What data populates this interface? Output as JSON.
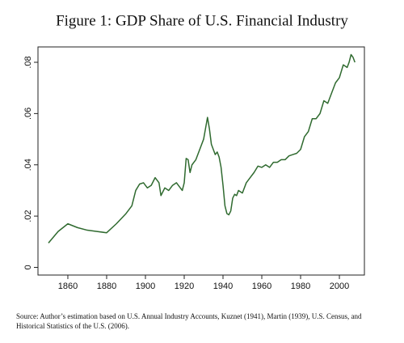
{
  "chart_data": {
    "type": "line",
    "title": "Figure 1: GDP Share of U.S. Financial Industry",
    "source": "Source: Author’s estimation based on U.S. Annual Industry Accounts, Kuznet (1941), Martin (1939), U.S. Census, and Historical Statistics of the U.S. (2006).",
    "color": "#2f6a2f",
    "x": [
      1850,
      1855,
      1860,
      1865,
      1870,
      1875,
      1880,
      1885,
      1890,
      1893,
      1895,
      1897,
      1899,
      1901,
      1903,
      1905,
      1907,
      1908,
      1910,
      1912,
      1914,
      1916,
      1918,
      1919,
      1920,
      1921,
      1922,
      1923,
      1924,
      1926,
      1928,
      1930,
      1932,
      1933,
      1934,
      1936,
      1937,
      1938,
      1939,
      1940,
      1941,
      1942,
      1943,
      1944,
      1945,
      1946,
      1947,
      1948,
      1950,
      1952,
      1954,
      1956,
      1958,
      1960,
      1962,
      1964,
      1966,
      1968,
      1970,
      1972,
      1974,
      1976,
      1978,
      1980,
      1982,
      1984,
      1986,
      1988,
      1990,
      1992,
      1994,
      1996,
      1998,
      2000,
      2002,
      2004,
      2005,
      2006,
      2007,
      2008
    ],
    "values": [
      0.0095,
      0.014,
      0.017,
      0.0155,
      0.0145,
      0.014,
      0.0135,
      0.017,
      0.021,
      0.024,
      0.03,
      0.0325,
      0.033,
      0.031,
      0.032,
      0.035,
      0.033,
      0.028,
      0.031,
      0.03,
      0.032,
      0.033,
      0.031,
      0.03,
      0.033,
      0.0425,
      0.042,
      0.037,
      0.04,
      0.042,
      0.046,
      0.05,
      0.0585,
      0.054,
      0.048,
      0.044,
      0.045,
      0.043,
      0.039,
      0.032,
      0.024,
      0.021,
      0.0205,
      0.022,
      0.027,
      0.0285,
      0.028,
      0.03,
      0.029,
      0.033,
      0.035,
      0.037,
      0.0395,
      0.039,
      0.04,
      0.039,
      0.041,
      0.041,
      0.042,
      0.042,
      0.0435,
      0.044,
      0.0445,
      0.046,
      0.051,
      0.053,
      0.058,
      0.058,
      0.06,
      0.065,
      0.064,
      0.068,
      0.072,
      0.074,
      0.079,
      0.078,
      0.08,
      0.083,
      0.082,
      0.08
    ],
    "xlim": [
      1844.6,
      2012.9
    ],
    "ylim": [
      -0.003,
      0.086
    ],
    "xticks": [
      1860,
      1880,
      1900,
      1920,
      1940,
      1960,
      1980,
      2000
    ],
    "yticks": [
      {
        "value": 0,
        "label": "0"
      },
      {
        "value": 0.02,
        "label": ".02"
      },
      {
        "value": 0.04,
        "label": ".04"
      },
      {
        "value": 0.06,
        "label": ".06"
      },
      {
        "value": 0.08,
        "label": ".08"
      }
    ],
    "grid": false
  }
}
